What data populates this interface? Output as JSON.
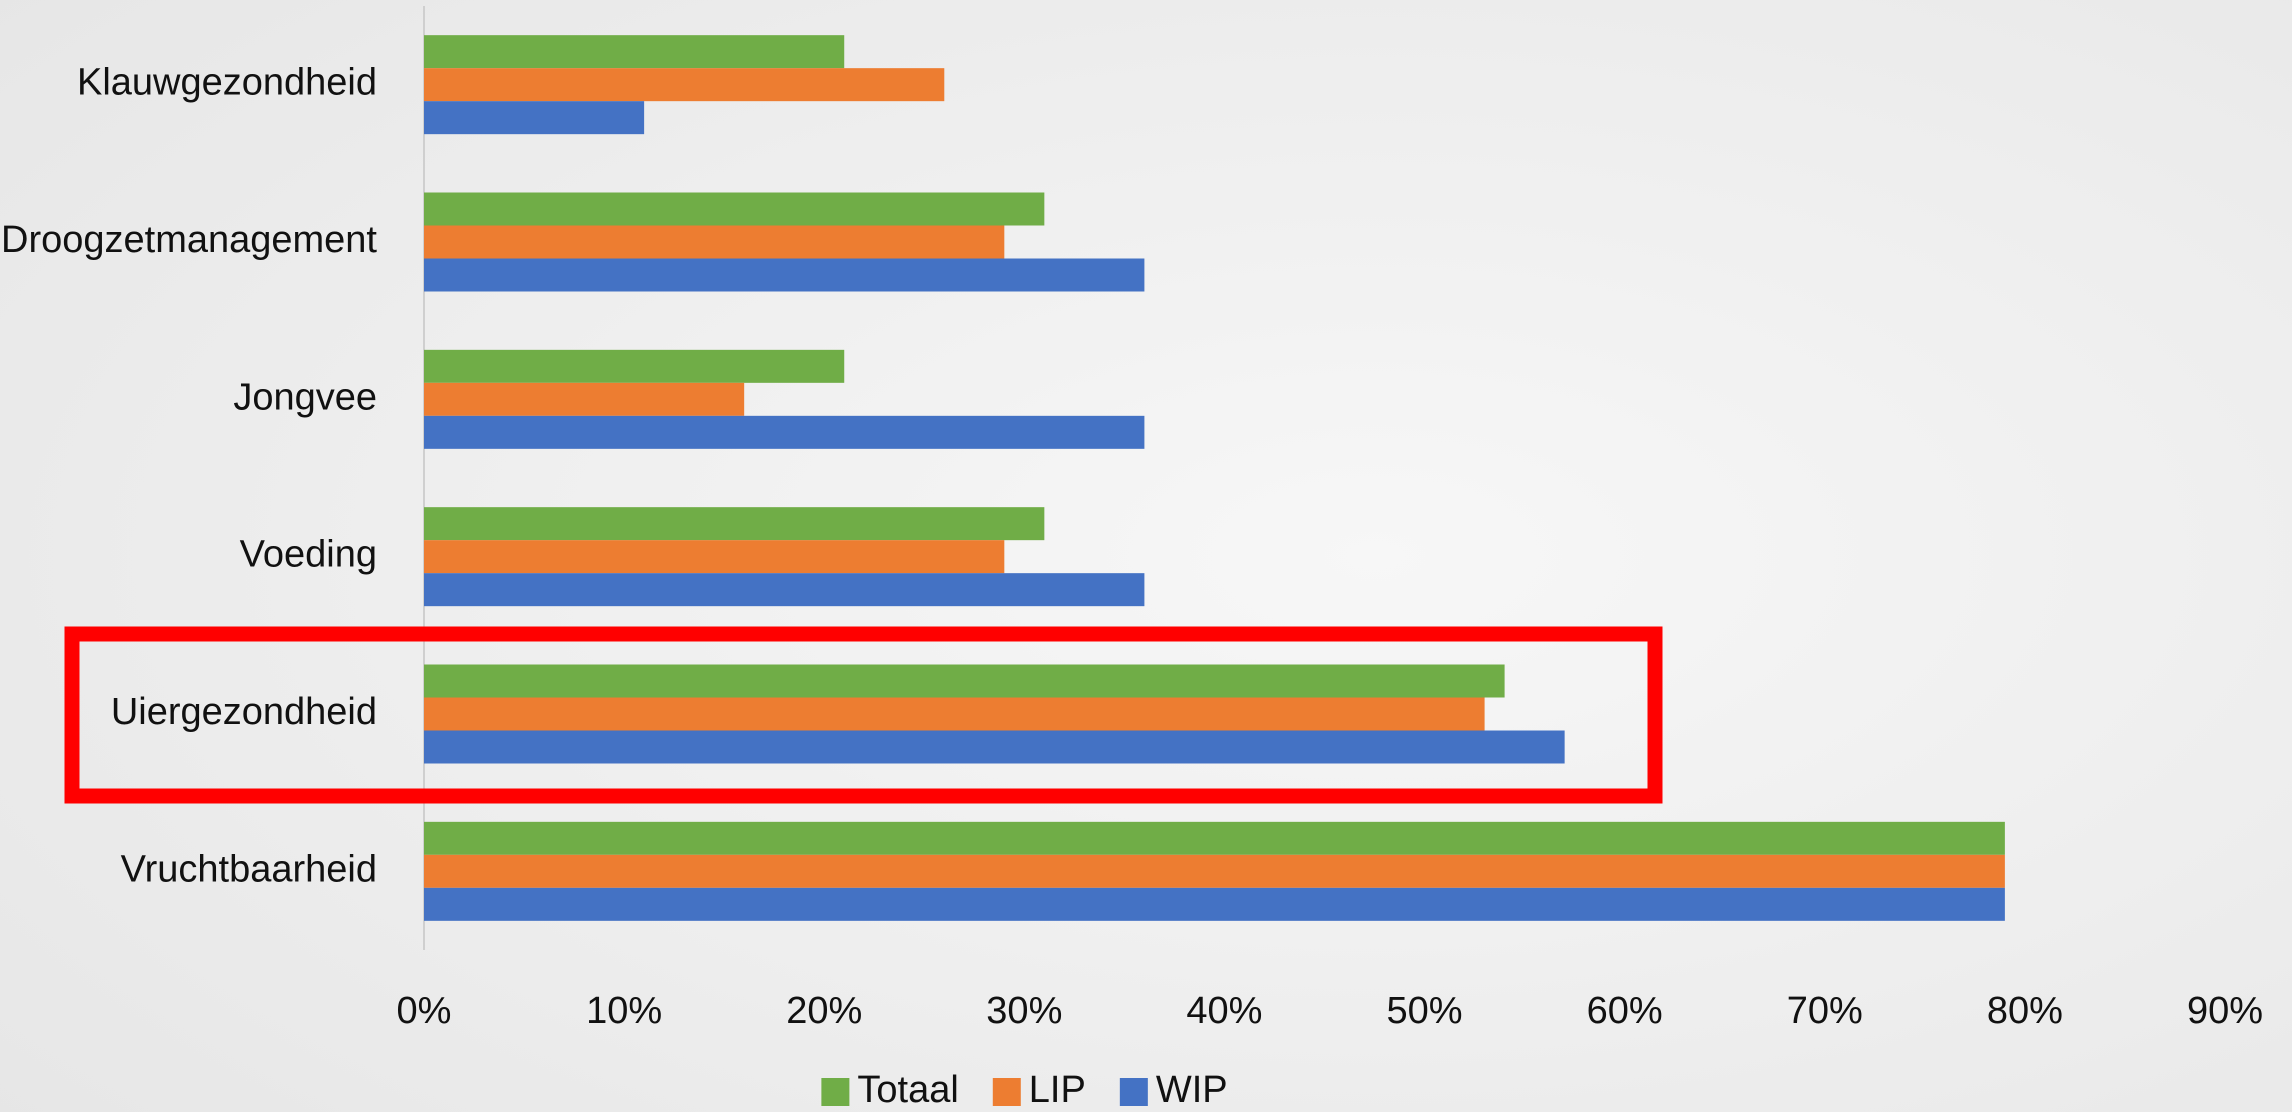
{
  "chart_data": {
    "type": "hbar",
    "categories": [
      "Klauwgezondheid",
      "Droogzetmanagement",
      "Jongvee",
      "Voeding",
      "Uiergezondheid",
      "Vruchtbaarheid"
    ],
    "series": [
      {
        "name": "Totaal",
        "color": "#70ad47",
        "values": [
          21,
          31,
          21,
          31,
          54,
          79
        ]
      },
      {
        "name": "LIP",
        "color": "#ed7d31",
        "values": [
          26,
          29,
          16,
          29,
          53,
          79
        ]
      },
      {
        "name": "WIP",
        "color": "#4472c4",
        "values": [
          11,
          36,
          36,
          36,
          57,
          79
        ]
      }
    ],
    "xlim": [
      0,
      90
    ],
    "xticks": [
      {
        "value": 0,
        "label": "0%"
      },
      {
        "value": 10,
        "label": "10%"
      },
      {
        "value": 20,
        "label": "20%"
      },
      {
        "value": 30,
        "label": "30%"
      },
      {
        "value": 40,
        "label": "40%"
      },
      {
        "value": 50,
        "label": "50%"
      },
      {
        "value": 60,
        "label": "60%"
      },
      {
        "value": 70,
        "label": "70%"
      },
      {
        "value": 80,
        "label": "80%"
      },
      {
        "value": 90,
        "label": "90%"
      }
    ],
    "legend": "bottom",
    "highlight_category": 4
  }
}
